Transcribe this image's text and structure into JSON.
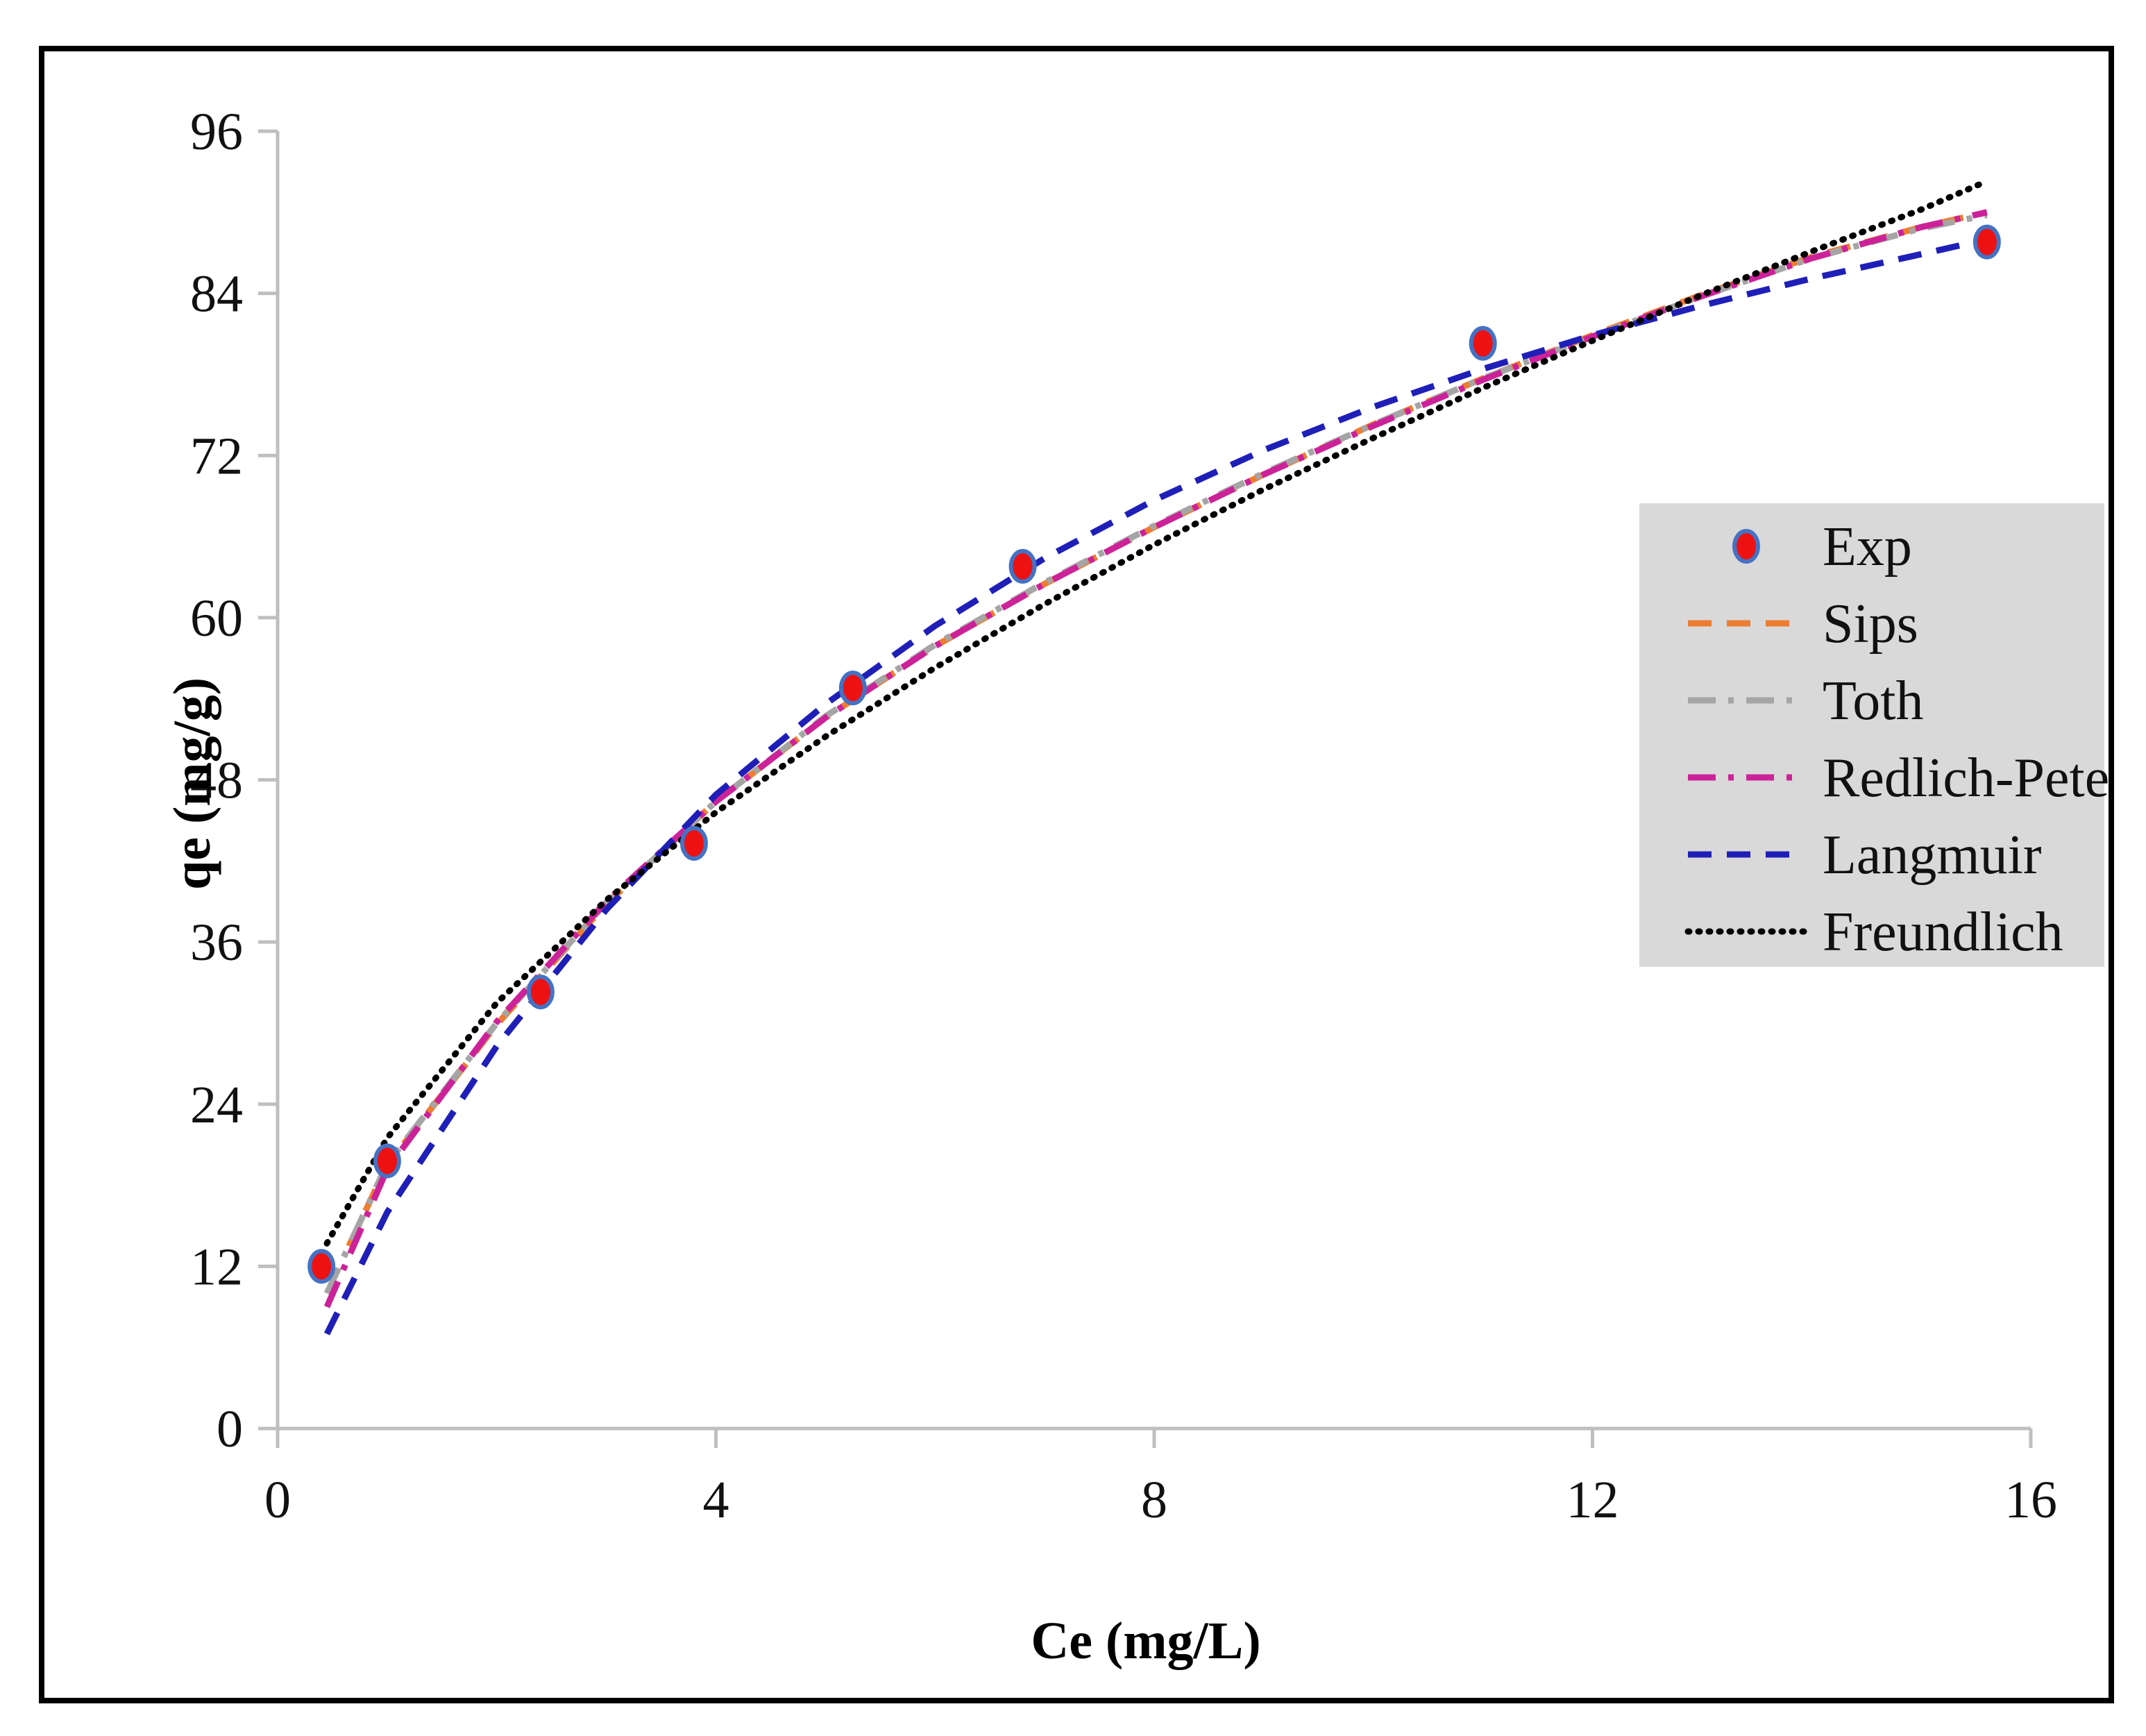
{
  "chart_data": {
    "type": "line",
    "title": "",
    "xlabel": "Ce (mg/L)",
    "ylabel": "qe (mg/g)",
    "xlim": [
      0,
      16
    ],
    "ylim": [
      0,
      96
    ],
    "xticks": [
      0,
      4,
      8,
      12,
      16
    ],
    "yticks": [
      0,
      12,
      24,
      36,
      48,
      60,
      72,
      84,
      96
    ],
    "grid": false,
    "legend_position": "right",
    "series": [
      {
        "name": "Exp",
        "kind": "markers",
        "color": "#ee1111",
        "edge_color": "#4472c4",
        "x": [
          0.4,
          1.0,
          2.4,
          3.8,
          5.25,
          6.8,
          11.0,
          15.6
        ],
        "y": [
          12.0,
          19.8,
          32.3,
          43.3,
          54.8,
          63.8,
          80.3,
          87.8
        ]
      },
      {
        "name": "Sips",
        "kind": "line",
        "color": "#ed7d31",
        "dash": "dashed",
        "x": [
          0.65,
          1.0,
          2.0,
          3.0,
          4.0,
          5.0,
          6.0,
          7.0,
          8.0,
          9.0,
          10.0,
          11.0,
          12.0,
          13.0,
          14.0,
          15.0,
          15.6
        ],
        "y": [
          13.5,
          19.5,
          29.9,
          38.8,
          46.4,
          52.6,
          57.9,
          62.5,
          66.7,
          70.6,
          74.3,
          77.7,
          80.9,
          83.9,
          86.7,
          88.9,
          90.0
        ]
      },
      {
        "name": "Toth",
        "kind": "line",
        "color": "#a5a5a5",
        "dash": "dashdot",
        "x": [
          0.45,
          1.0,
          2.0,
          3.0,
          4.0,
          5.0,
          6.0,
          7.0,
          8.0,
          9.0,
          10.0,
          11.0,
          12.0,
          13.0,
          14.0,
          15.0,
          15.6
        ],
        "y": [
          10.0,
          19.6,
          30.0,
          38.9,
          46.4,
          52.7,
          58.0,
          62.6,
          66.8,
          70.7,
          74.3,
          77.7,
          80.8,
          83.8,
          86.6,
          88.8,
          89.8
        ]
      },
      {
        "name": "Redlich-Peterson",
        "kind": "line",
        "color": "#cc2299",
        "dash": "dashdot",
        "x": [
          0.45,
          1.0,
          2.0,
          3.0,
          4.0,
          5.0,
          6.0,
          7.0,
          8.0,
          9.0,
          10.0,
          11.0,
          12.0,
          13.0,
          14.0,
          15.0,
          15.6
        ],
        "y": [
          9.0,
          19.2,
          30.1,
          39.0,
          46.4,
          52.6,
          57.9,
          62.5,
          66.7,
          70.6,
          74.2,
          77.6,
          80.8,
          83.8,
          86.6,
          88.9,
          90.0
        ]
      },
      {
        "name": "Langmuir",
        "kind": "line",
        "color": "#1f1fb8",
        "dash": "dashed",
        "x": [
          0.45,
          1.0,
          2.0,
          3.0,
          4.0,
          5.0,
          6.0,
          7.0,
          8.0,
          9.0,
          10.0,
          11.0,
          12.0,
          13.0,
          14.0,
          15.0,
          15.6
        ],
        "y": [
          7.0,
          16.0,
          28.3,
          38.4,
          46.9,
          53.6,
          59.4,
          64.4,
          68.7,
          72.4,
          75.6,
          78.4,
          80.9,
          83.1,
          85.1,
          86.9,
          88.0
        ]
      },
      {
        "name": "Freundlich",
        "kind": "line",
        "color": "#000000",
        "dash": "dotted",
        "x": [
          0.45,
          1.0,
          2.0,
          3.0,
          4.0,
          5.0,
          6.0,
          7.0,
          8.0,
          9.0,
          10.0,
          11.0,
          12.0,
          13.0,
          14.0,
          15.0,
          15.6
        ],
        "y": [
          13.7,
          21.5,
          31.5,
          39.1,
          45.6,
          51.2,
          56.3,
          61.0,
          65.4,
          69.5,
          73.3,
          77.0,
          80.5,
          83.9,
          87.1,
          90.2,
          92.3
        ]
      }
    ]
  }
}
